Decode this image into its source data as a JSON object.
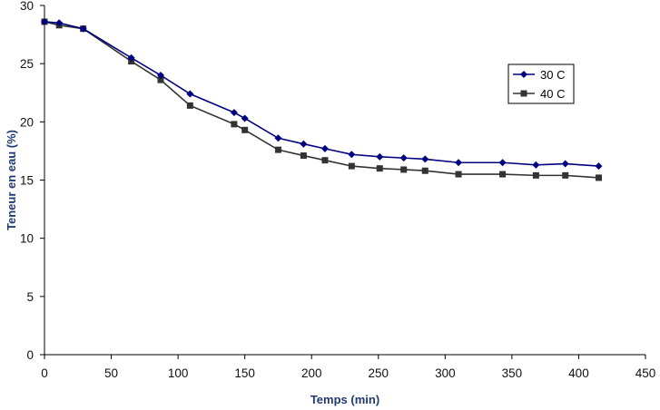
{
  "chart_data": {
    "type": "line",
    "title": "",
    "xlabel": "Temps (min)",
    "ylabel": "Teneur en eau (%)",
    "xlim": [
      0,
      450
    ],
    "ylim": [
      0,
      30
    ],
    "xticks": [
      0,
      50,
      100,
      150,
      200,
      250,
      300,
      350,
      400,
      450
    ],
    "yticks": [
      0,
      5,
      10,
      15,
      20,
      25,
      30
    ],
    "grid": false,
    "legend_position": "right",
    "series": [
      {
        "name": "30 C",
        "color": "#000080",
        "marker": "diamond",
        "x": [
          0,
          11,
          29,
          65,
          87,
          109,
          142,
          150,
          175,
          194,
          210,
          230,
          251,
          269,
          285,
          310,
          343,
          368,
          390,
          415
        ],
        "y": [
          28.6,
          28.5,
          28.0,
          25.5,
          24.0,
          22.4,
          20.8,
          20.3,
          18.6,
          18.1,
          17.7,
          17.2,
          17.0,
          16.9,
          16.8,
          16.5,
          16.5,
          16.3,
          16.4,
          16.2
        ]
      },
      {
        "name": "40 C",
        "color": "#333333",
        "marker": "square",
        "x": [
          0,
          11,
          29,
          65,
          87,
          109,
          142,
          150,
          175,
          194,
          210,
          230,
          251,
          269,
          285,
          310,
          343,
          368,
          390,
          415
        ],
        "y": [
          28.6,
          28.3,
          28.0,
          25.2,
          23.6,
          21.4,
          19.8,
          19.3,
          17.6,
          17.1,
          16.7,
          16.2,
          16.0,
          15.9,
          15.8,
          15.5,
          15.5,
          15.4,
          15.4,
          15.2
        ]
      }
    ]
  }
}
